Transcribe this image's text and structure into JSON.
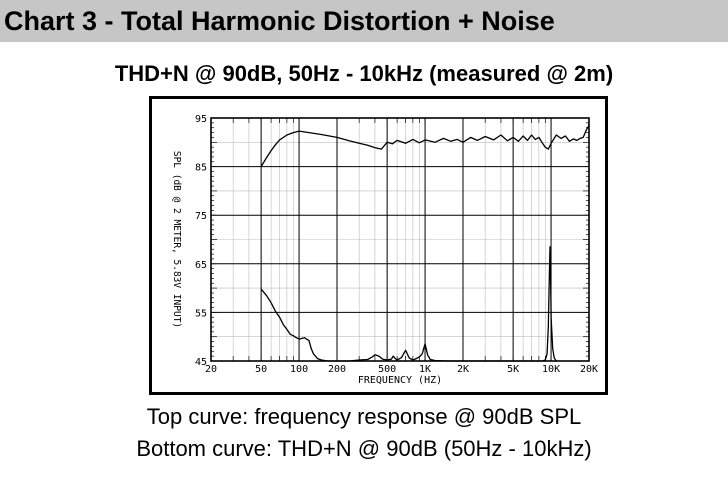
{
  "header": {
    "title": "Chart 3 - Total Harmonic Distortion + Noise"
  },
  "captions": {
    "top": "Top curve: frequency response @ 90dB SPL",
    "bottom": "Bottom curve: THD+N @ 90dB (50Hz - 10kHz)"
  },
  "chart_data": {
    "type": "line",
    "title": "THD+N @ 90dB, 50Hz - 10kHz (measured @ 2m)",
    "xlabel": "FREQUENCY (HZ)",
    "ylabel": "SPL (dB @ 2 METER, 5.83V INPUT)",
    "x_scale": "log",
    "xlim": [
      20,
      20000
    ],
    "ylim": [
      45,
      95
    ],
    "x_ticks": [
      {
        "value": 20,
        "label": "20"
      },
      {
        "value": 50,
        "label": "50"
      },
      {
        "value": 100,
        "label": "100"
      },
      {
        "value": 200,
        "label": "200"
      },
      {
        "value": 500,
        "label": "500"
      },
      {
        "value": 1000,
        "label": "1K"
      },
      {
        "value": 2000,
        "label": "2K"
      },
      {
        "value": 5000,
        "label": "5K"
      },
      {
        "value": 10000,
        "label": "10K"
      },
      {
        "value": 20000,
        "label": "20K"
      }
    ],
    "y_ticks": [
      {
        "value": 45,
        "label": "45"
      },
      {
        "value": 55,
        "label": "55"
      },
      {
        "value": 65,
        "label": "65"
      },
      {
        "value": 75,
        "label": "75"
      },
      {
        "value": 85,
        "label": "85"
      },
      {
        "value": 95,
        "label": "95"
      }
    ],
    "grid": true,
    "series": [
      {
        "x": [
          50,
          55,
          60,
          65,
          70,
          80,
          90,
          100,
          120,
          150,
          200,
          250,
          300,
          350,
          400,
          450,
          500,
          550,
          600,
          700,
          800,
          900,
          1000,
          1200,
          1400,
          1600,
          1800,
          2000,
          2300,
          2600,
          3000,
          3500,
          4000,
          4500,
          5000,
          5500,
          6000,
          6500,
          7000,
          7500,
          8000,
          8500,
          9000,
          9500,
          10000,
          11000,
          12000,
          13000,
          14000,
          15000,
          16000,
          17000,
          18000,
          19000,
          20000
        ],
        "y": [
          85.0,
          86.8,
          88.3,
          89.5,
          90.5,
          91.5,
          92.0,
          92.3,
          92.0,
          91.6,
          91.0,
          90.3,
          89.8,
          89.4,
          88.9,
          88.6,
          90.0,
          89.7,
          90.4,
          89.8,
          90.6,
          89.9,
          90.5,
          90.0,
          90.8,
          90.2,
          90.6,
          90.0,
          91.0,
          90.4,
          91.2,
          90.5,
          91.5,
          90.3,
          91.0,
          90.2,
          91.3,
          90.4,
          91.5,
          90.6,
          91.0,
          89.9,
          89.0,
          88.6,
          89.8,
          91.5,
          90.8,
          91.3,
          90.2,
          90.7,
          90.4,
          90.8,
          91.0,
          92.5,
          93.5
        ]
      },
      {
        "x": [
          50,
          55,
          60,
          65,
          70,
          75,
          80,
          85,
          90,
          95,
          100,
          110,
          120,
          125,
          130,
          140,
          150,
          170,
          200,
          250,
          300,
          350,
          380,
          400,
          430,
          460,
          500,
          540,
          560,
          580,
          600,
          650,
          700,
          750,
          800,
          850,
          900,
          950,
          980,
          1000,
          1020,
          1050,
          1100,
          1200,
          1500,
          2000,
          3000,
          5000,
          7000,
          8500,
          9000,
          9300,
          9500,
          9700,
          9800,
          9900,
          10000,
          10300,
          10600,
          11000
        ],
        "y": [
          59.8,
          58.5,
          57.0,
          55.2,
          54.0,
          52.5,
          51.5,
          50.5,
          50.2,
          49.8,
          49.5,
          49.8,
          49.2,
          47.5,
          46.5,
          45.5,
          45.2,
          45.0,
          45.0,
          45.0,
          45.2,
          45.3,
          45.8,
          46.3,
          46.0,
          45.4,
          45.2,
          45.4,
          46.0,
          45.5,
          45.2,
          45.7,
          47.2,
          45.6,
          45.2,
          45.5,
          45.8,
          46.5,
          47.8,
          48.5,
          47.5,
          46.2,
          45.3,
          45.1,
          45.0,
          45.0,
          45.0,
          45.0,
          45.0,
          45.0,
          45.2,
          46.5,
          52.0,
          63.0,
          68.5,
          64.0,
          54.0,
          47.5,
          45.6,
          45.0
        ]
      }
    ]
  }
}
